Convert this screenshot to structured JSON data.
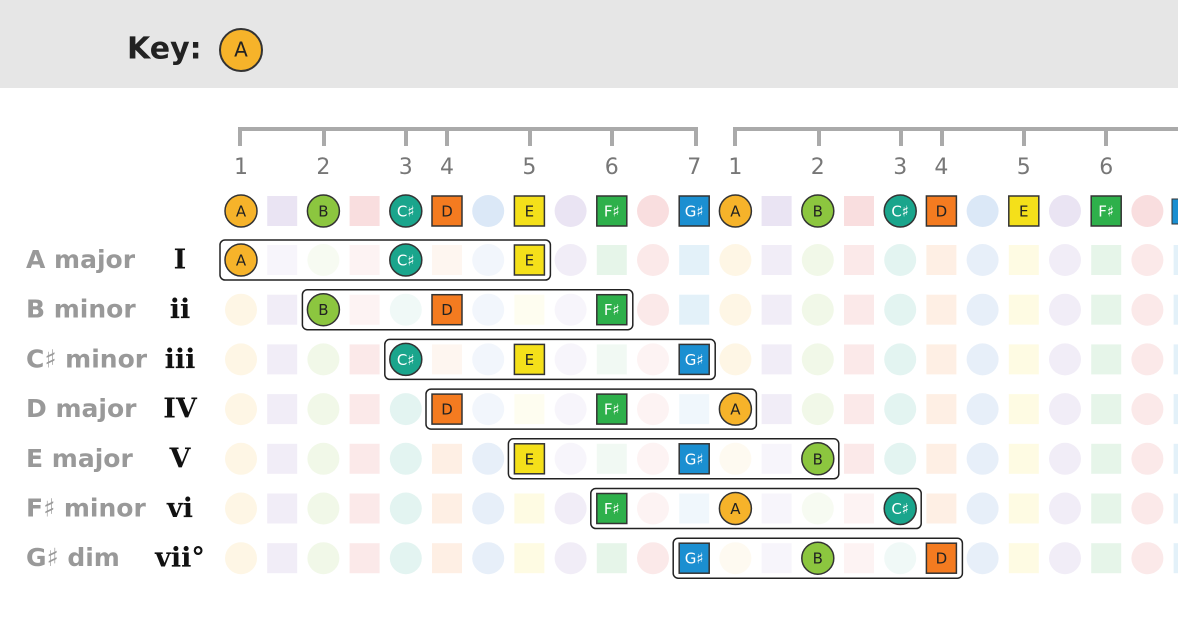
{
  "header": {
    "label": "Key:",
    "key": "A"
  },
  "degrees": [
    1,
    2,
    3,
    4,
    5,
    6,
    7,
    1,
    2,
    3,
    4,
    5,
    6
  ],
  "notes": [
    "A",
    "B",
    "C♯",
    "D",
    "E",
    "F♯",
    "G♯",
    "A",
    "B",
    "C♯",
    "D",
    "E",
    "F♯"
  ],
  "chords": [
    {
      "name": "A major",
      "numeral": "I",
      "notes": [
        "A",
        "C♯",
        "E"
      ]
    },
    {
      "name": "B minor",
      "numeral": "ii",
      "notes": [
        "B",
        "D",
        "F♯"
      ]
    },
    {
      "name": "C♯ minor",
      "numeral": "iii",
      "notes": [
        "C♯",
        "E",
        "G♯"
      ]
    },
    {
      "name": "D major",
      "numeral": "IV",
      "notes": [
        "D",
        "F♯",
        "A"
      ]
    },
    {
      "name": "E major",
      "numeral": "V",
      "notes": [
        "E",
        "G♯",
        "B"
      ]
    },
    {
      "name": "F♯ minor",
      "numeral": "vi",
      "notes": [
        "F♯",
        "A",
        "C♯"
      ]
    },
    {
      "name": "G♯ dim",
      "numeral": "vii°",
      "notes": [
        "G♯",
        "B",
        "D"
      ]
    }
  ]
}
